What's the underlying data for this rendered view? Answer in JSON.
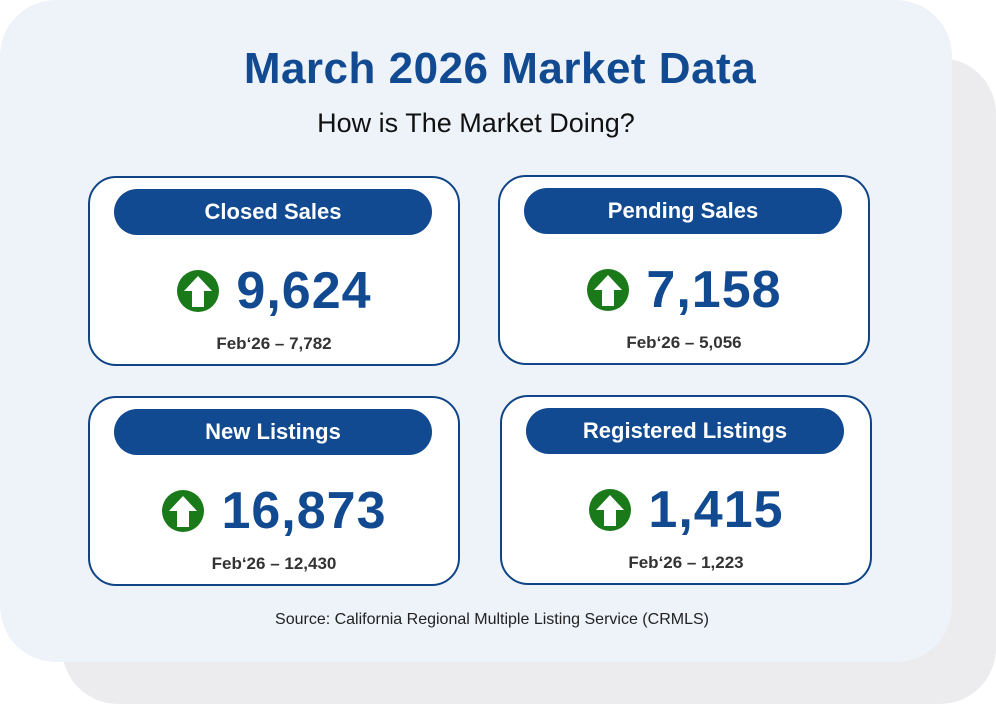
{
  "header": {
    "title": "March 2026 Market Data",
    "subtitle": "How is The Market Doing?"
  },
  "colors": {
    "brand_blue": "#114a91",
    "up_arrow_green": "#1a7a1a",
    "background": "#eef3f9"
  },
  "metrics": [
    {
      "label": "Closed Sales",
      "value": "9,624",
      "comparison": "Feb‘26 – 7,782",
      "trend_icon": "up-arrow-icon"
    },
    {
      "label": "Pending Sales",
      "value": "7,158",
      "comparison": "Feb‘26 – 5,056",
      "trend_icon": "up-arrow-icon"
    },
    {
      "label": "New Listings",
      "value": "16,873",
      "comparison": "Feb‘26 – 12,430",
      "trend_icon": "up-arrow-icon"
    },
    {
      "label": "Registered Listings",
      "value": "1,415",
      "comparison": "Feb‘26 – 1,223",
      "trend_icon": "up-arrow-icon"
    }
  ],
  "footer": {
    "source": "Source: California Regional Multiple Listing Service (CRMLS)"
  }
}
